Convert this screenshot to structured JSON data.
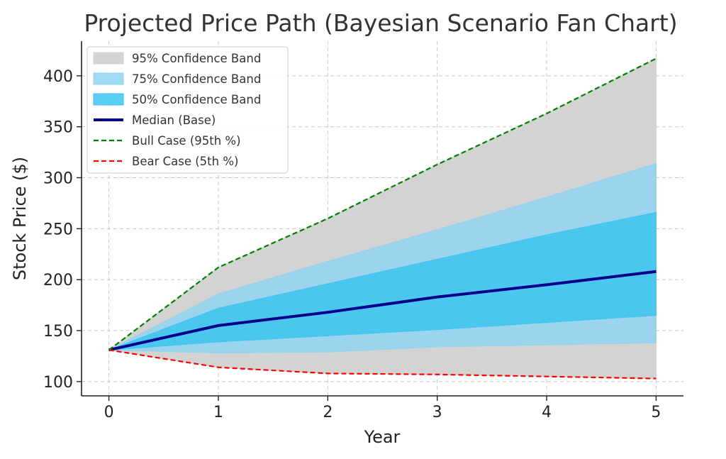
{
  "chart_data": {
    "type": "area",
    "title": "Projected Price Path (Bayesian Scenario Fan Chart)",
    "xlabel": "Year",
    "ylabel": "Stock Price ($)",
    "x": [
      0,
      1,
      2,
      3,
      4,
      5
    ],
    "xlim": [
      -0.25,
      5.25
    ],
    "ylim": [
      86,
      434
    ],
    "xticks": [
      0,
      1,
      2,
      3,
      4,
      5
    ],
    "yticks": [
      100,
      150,
      200,
      250,
      300,
      350,
      400
    ],
    "grid": true,
    "legend_position": "top-left",
    "bands": [
      {
        "name": "95% Confidence Band",
        "lower": [
          131,
          114,
          108,
          107,
          105,
          103
        ],
        "upper": [
          131,
          212,
          260,
          313,
          363,
          417
        ],
        "color": "#d3d3d3"
      },
      {
        "name": "75% Confidence Band",
        "lower": [
          131,
          128,
          129,
          134,
          136,
          138
        ],
        "upper": [
          131,
          186,
          218,
          249,
          281,
          314
        ],
        "color": "#91d4f0"
      },
      {
        "name": "50% Confidence Band",
        "lower": [
          131,
          139,
          145,
          151,
          158,
          165
        ],
        "upper": [
          131,
          172,
          196,
          220,
          244,
          266
        ],
        "color": "#3cc4f0"
      }
    ],
    "series": [
      {
        "name": "Median (Base)",
        "values": [
          131,
          155,
          168,
          183,
          195,
          208
        ],
        "color": "#00008b",
        "style": "solid"
      },
      {
        "name": "Bull Case (95th %)",
        "values": [
          131,
          212,
          260,
          313,
          363,
          417
        ],
        "color": "#008000",
        "style": "dashed"
      },
      {
        "name": "Bear Case (5th %)",
        "values": [
          131,
          114,
          108,
          107,
          105,
          103
        ],
        "color": "#ff0000",
        "style": "dashed"
      }
    ]
  }
}
